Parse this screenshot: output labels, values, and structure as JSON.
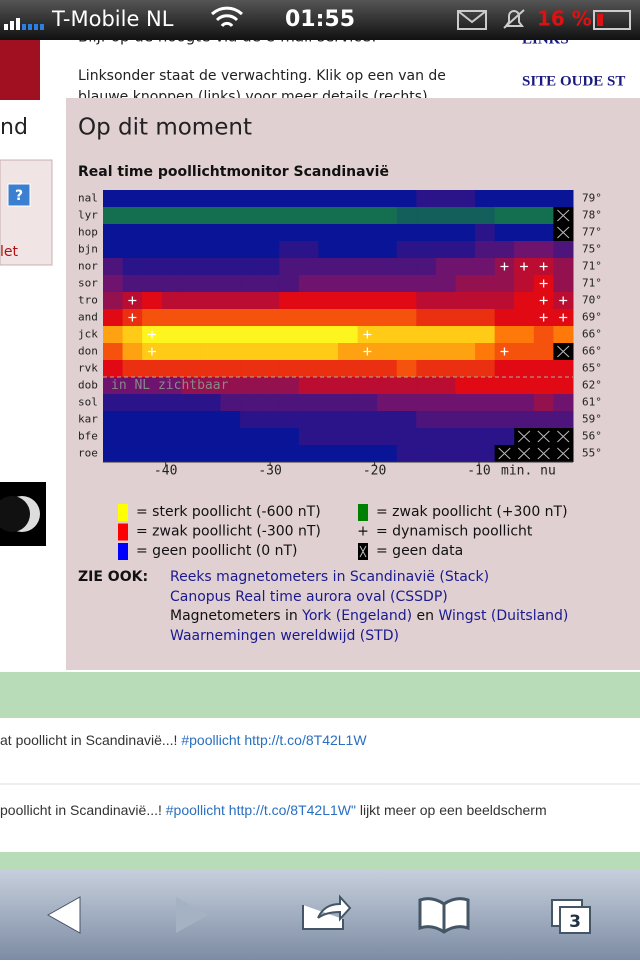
{
  "status_bar": {
    "carrier": "T-Mobile NL",
    "time": "01:55",
    "battery": "16 %"
  },
  "background": {
    "intro_1": "Blijf op de hoogte via de e-mail service!",
    "intro_2": "Linksonder staat de verwachting. Klik op een van de",
    "intro_3": "blauwe knoppen (links) voor meer details (rechts)",
    "links": "LINKS",
    "site": "SITE OUDE ST",
    "left_1": "nd",
    "left_2": "let",
    "help": "?"
  },
  "panel": {
    "title": "Op dit moment",
    "subtitle": "Real time poollichtmonitor Scandinavië"
  },
  "chart_data": {
    "type": "heatmap",
    "xlim": [
      -46,
      -1
    ],
    "xticks": [
      -40,
      -30,
      -20,
      {
        "value": -10,
        "label": "-10"
      }
    ],
    "x_unit": "min. nu",
    "annotation": "in NL zichtbaar",
    "rows": [
      {
        "name": "nal",
        "lat": "79°",
        "values": [
          0,
          0,
          0,
          0,
          0,
          0,
          0,
          0,
          0,
          0,
          0,
          0,
          0,
          0,
          0,
          0,
          -50,
          -50,
          -50,
          0,
          0,
          0,
          0,
          0
        ],
        "dynamic": []
      },
      {
        "name": "lyr",
        "lat": "78°",
        "values": [
          300,
          300,
          300,
          300,
          300,
          300,
          300,
          300,
          300,
          300,
          300,
          300,
          300,
          300,
          300,
          250,
          250,
          250,
          250,
          250,
          300,
          300,
          300,
          null
        ],
        "dynamic": []
      },
      {
        "name": "hop",
        "lat": "77°",
        "values": [
          0,
          0,
          0,
          0,
          0,
          0,
          0,
          0,
          0,
          0,
          0,
          0,
          0,
          0,
          0,
          0,
          0,
          0,
          0,
          -50,
          0,
          0,
          0,
          null
        ],
        "dynamic": []
      },
      {
        "name": "bjn",
        "lat": "75°",
        "values": [
          0,
          0,
          0,
          0,
          0,
          0,
          0,
          0,
          0,
          -50,
          -50,
          0,
          0,
          0,
          0,
          -50,
          -50,
          -50,
          -50,
          -100,
          -100,
          -150,
          -150,
          -100
        ],
        "dynamic": []
      },
      {
        "name": "nor",
        "lat": "71°",
        "values": [
          -100,
          -50,
          -50,
          -50,
          -50,
          -50,
          -50,
          -50,
          -50,
          -100,
          -100,
          -100,
          -100,
          -100,
          -100,
          -100,
          -100,
          -150,
          -150,
          -150,
          -200,
          -250,
          -250,
          -200
        ],
        "dynamic": [
          20,
          21,
          22
        ]
      },
      {
        "name": "sor",
        "lat": "71°",
        "values": [
          -150,
          -100,
          -100,
          -100,
          -100,
          -100,
          -100,
          -100,
          -100,
          -100,
          -150,
          -150,
          -150,
          -150,
          -150,
          -150,
          -150,
          -150,
          -200,
          -200,
          -200,
          -250,
          -300,
          -200
        ],
        "dynamic": [
          22
        ]
      },
      {
        "name": "tro",
        "lat": "70°",
        "values": [
          -200,
          -250,
          -300,
          -250,
          -250,
          -250,
          -250,
          -250,
          -250,
          -300,
          -300,
          -300,
          -300,
          -300,
          -300,
          -300,
          -250,
          -250,
          -250,
          -250,
          -250,
          -300,
          -300,
          -250
        ],
        "dynamic": [
          1,
          22,
          23
        ]
      },
      {
        "name": "and",
        "lat": "69°",
        "values": [
          -300,
          -350,
          -400,
          -400,
          -400,
          -400,
          -400,
          -400,
          -400,
          -400,
          -400,
          -400,
          -400,
          -400,
          -400,
          -400,
          -350,
          -350,
          -350,
          -350,
          -300,
          -300,
          -300,
          -300
        ],
        "dynamic": [
          1,
          22,
          23
        ]
      },
      {
        "name": "jck",
        "lat": "66°",
        "values": [
          -500,
          -550,
          -600,
          -600,
          -600,
          -600,
          -600,
          -600,
          -600,
          -600,
          -600,
          -600,
          -600,
          -550,
          -550,
          -550,
          -550,
          -550,
          -550,
          -550,
          -450,
          -450,
          -400,
          -450
        ],
        "dynamic": [
          2,
          13
        ]
      },
      {
        "name": "don",
        "lat": "66°",
        "values": [
          -400,
          -500,
          -550,
          -550,
          -550,
          -550,
          -550,
          -550,
          -550,
          -550,
          -550,
          -550,
          -500,
          -500,
          -500,
          -500,
          -500,
          -500,
          -500,
          -450,
          -400,
          -400,
          -400,
          null
        ],
        "dynamic": [
          2,
          13,
          20
        ]
      },
      {
        "name": "rvk",
        "lat": "65°",
        "values": [
          -300,
          -350,
          -350,
          -350,
          -350,
          -350,
          -350,
          -350,
          -350,
          -350,
          -350,
          -350,
          -350,
          -350,
          -350,
          -400,
          -350,
          -350,
          -350,
          -350,
          -300,
          -300,
          -300,
          -300
        ],
        "dynamic": []
      },
      {
        "name": "dob",
        "lat": "62°",
        "values": [
          -150,
          -150,
          -150,
          -150,
          -200,
          -200,
          -200,
          -200,
          -200,
          -200,
          -250,
          -250,
          -250,
          -250,
          -250,
          -250,
          -250,
          -250,
          -300,
          -300,
          -300,
          -300,
          -300,
          -300
        ],
        "dynamic": []
      },
      {
        "name": "sol",
        "lat": "61°",
        "values": [
          -50,
          -50,
          -50,
          -50,
          -50,
          -50,
          -100,
          -100,
          -100,
          -100,
          -100,
          -100,
          -100,
          -100,
          -150,
          -150,
          -150,
          -150,
          -150,
          -150,
          -150,
          -150,
          -200,
          -150
        ],
        "dynamic": []
      },
      {
        "name": "kar",
        "lat": "59°",
        "values": [
          0,
          0,
          0,
          0,
          0,
          0,
          0,
          -50,
          -50,
          -50,
          -50,
          -50,
          -50,
          -50,
          -50,
          -50,
          -100,
          -100,
          -100,
          -100,
          -100,
          -100,
          -100,
          -100
        ],
        "dynamic": []
      },
      {
        "name": "bfe",
        "lat": "56°",
        "values": [
          0,
          0,
          0,
          0,
          0,
          0,
          0,
          0,
          0,
          0,
          -50,
          -50,
          -50,
          -50,
          -50,
          -50,
          -50,
          -50,
          -50,
          -50,
          -50,
          null,
          null,
          null
        ],
        "dynamic": []
      },
      {
        "name": "roe",
        "lat": "55°",
        "values": [
          0,
          0,
          0,
          0,
          0,
          0,
          0,
          0,
          0,
          0,
          0,
          0,
          0,
          0,
          0,
          -50,
          -50,
          -50,
          -50,
          -50,
          null,
          null,
          null,
          null
        ],
        "dynamic": []
      }
    ]
  },
  "legend": [
    {
      "color": "#ffff00",
      "label": "= sterk poollicht (-600 nT)"
    },
    {
      "color": "#ff0000",
      "label": "= zwak poollicht (-300 nT)"
    },
    {
      "color": "#0000ff",
      "label": "= geen poollicht (0 nT)"
    },
    {
      "color": "#008000",
      "label": "= zwak poollicht (+300 nT)"
    },
    {
      "symbol": "+",
      "label": "= dynamisch poollicht"
    },
    {
      "color": "#000000",
      "label": "= geen data"
    }
  ],
  "see_also": {
    "label": "ZIE OOK:",
    "line_1": "Reeks magnetometers in Scandinavië (Stack)",
    "line_2": "Canopus Real time aurora oval (CSSDP)",
    "line_3": [
      "Magnetometers in ",
      "York (Engeland)",
      " en ",
      "Wingst (Duitsland)"
    ],
    "line_4": "Waarnemingen wereldwijd (STD)"
  },
  "tweets": [
    [
      "at poollicht in Scandinavië...! ",
      "#poollicht http://t.co/8T42L1W",
      ""
    ],
    [
      "poollicht in Scandinavië...! ",
      "#poollicht http://t.co/8T42L1W\"",
      " lijkt meer op een beeldscherm"
    ]
  ],
  "toolbar": {
    "tabs": "3"
  }
}
